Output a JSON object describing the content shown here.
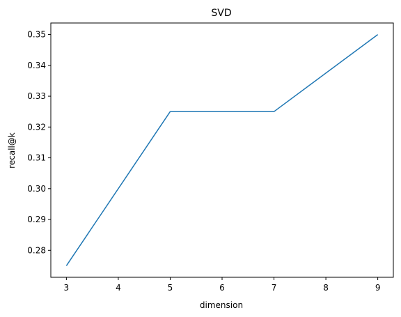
{
  "chart_data": {
    "type": "line",
    "title": "SVD",
    "xlabel": "dimension",
    "ylabel": "recall@k",
    "x": [
      3,
      5,
      7,
      9
    ],
    "series": [
      {
        "values": [
          0.275,
          0.325,
          0.325,
          0.35
        ],
        "color": "#1f77b4"
      }
    ],
    "xlim": [
      2.7,
      9.3
    ],
    "ylim": [
      0.27125,
      0.35375
    ],
    "xticks": [
      "3",
      "4",
      "5",
      "6",
      "7",
      "8",
      "9"
    ],
    "yticks": [
      "0.28",
      "0.29",
      "0.30",
      "0.31",
      "0.32",
      "0.33",
      "0.34",
      "0.35"
    ],
    "grid": false,
    "legend": "none"
  }
}
